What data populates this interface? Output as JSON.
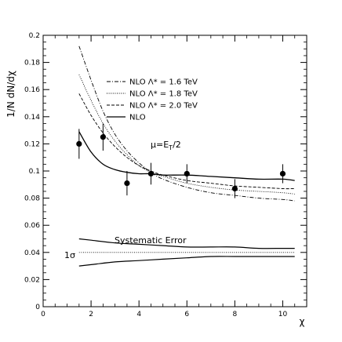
{
  "chart_data": {
    "type": "line",
    "xlabel": "χ",
    "ylabel": "1/N dN/dχ",
    "xlim": [
      0,
      11
    ],
    "ylim": [
      0,
      0.2
    ],
    "x_ticks": [
      0,
      2,
      4,
      6,
      8,
      10
    ],
    "y_ticks": [
      0,
      0.02,
      0.04,
      0.06,
      0.08,
      0.1,
      0.12,
      0.14,
      0.16,
      0.18,
      0.2
    ],
    "x_tick_labels": [
      "0",
      "2",
      "4",
      "6",
      "8",
      "10"
    ],
    "y_tick_labels": [
      "0",
      "0.02",
      "0.04",
      "0.06",
      "0.08",
      "0.1",
      "0.12",
      "0.14",
      "0.16",
      "0.18",
      "0.2"
    ],
    "grid": false,
    "legend_position": "top-center",
    "series": [
      {
        "name": "NLO Λ* = 1.6 TeV",
        "style": "dashdot",
        "x": [
          1.5,
          2,
          2.5,
          3,
          3.5,
          4,
          4.5,
          5,
          6,
          7,
          8,
          9,
          10,
          10.5
        ],
        "y": [
          0.192,
          0.167,
          0.144,
          0.127,
          0.115,
          0.106,
          0.099,
          0.094,
          0.088,
          0.084,
          0.082,
          0.08,
          0.079,
          0.078
        ]
      },
      {
        "name": "NLO Λ* = 1.8 TeV",
        "style": "dotted",
        "x": [
          1.5,
          2,
          2.5,
          3,
          3.5,
          4,
          4.5,
          5,
          6,
          7,
          8,
          9,
          10,
          10.5
        ],
        "y": [
          0.171,
          0.152,
          0.135,
          0.122,
          0.112,
          0.104,
          0.099,
          0.096,
          0.091,
          0.088,
          0.086,
          0.085,
          0.084,
          0.083
        ]
      },
      {
        "name": "NLO Λ* = 2.0 TeV",
        "style": "dashed",
        "x": [
          1.5,
          2,
          2.5,
          3,
          3.5,
          4,
          4.5,
          5,
          6,
          7,
          8,
          9,
          10,
          10.5
        ],
        "y": [
          0.157,
          0.141,
          0.128,
          0.118,
          0.11,
          0.104,
          0.1,
          0.097,
          0.093,
          0.091,
          0.089,
          0.088,
          0.087,
          0.087
        ]
      },
      {
        "name": "NLO",
        "style": "solid",
        "x": [
          1.5,
          2,
          2.5,
          3,
          3.5,
          4,
          4.5,
          5,
          6,
          7,
          8,
          9,
          10,
          10.5
        ],
        "y": [
          0.129,
          0.114,
          0.105,
          0.101,
          0.099,
          0.098,
          0.098,
          0.097,
          0.097,
          0.096,
          0.095,
          0.094,
          0.094,
          0.093
        ]
      }
    ],
    "points": {
      "x": [
        1.5,
        2.5,
        3.5,
        4.5,
        6,
        8,
        10
      ],
      "y": [
        0.12,
        0.125,
        0.091,
        0.098,
        0.098,
        0.087,
        0.098
      ],
      "err": [
        0.011,
        0.01,
        0.009,
        0.008,
        0.007,
        0.007,
        0.007
      ]
    },
    "systematic_band": {
      "x": [
        1.5,
        2,
        3,
        4,
        5,
        6,
        7,
        8,
        9,
        10,
        10.5
      ],
      "upper": [
        0.05,
        0.049,
        0.047,
        0.046,
        0.045,
        0.044,
        0.044,
        0.044,
        0.043,
        0.043,
        0.043
      ],
      "center": [
        0.04,
        0.04,
        0.04,
        0.04,
        0.04,
        0.04,
        0.04,
        0.04,
        0.04,
        0.04,
        0.04
      ],
      "lower": [
        0.03,
        0.031,
        0.033,
        0.034,
        0.035,
        0.036,
        0.037,
        0.037,
        0.037,
        0.037,
        0.037
      ]
    },
    "annotations": {
      "scale": "μ=E",
      "scale_sub": "T",
      "scale_tail": "/2",
      "systematic": "Systematic Error",
      "sigma": "1σ"
    }
  }
}
